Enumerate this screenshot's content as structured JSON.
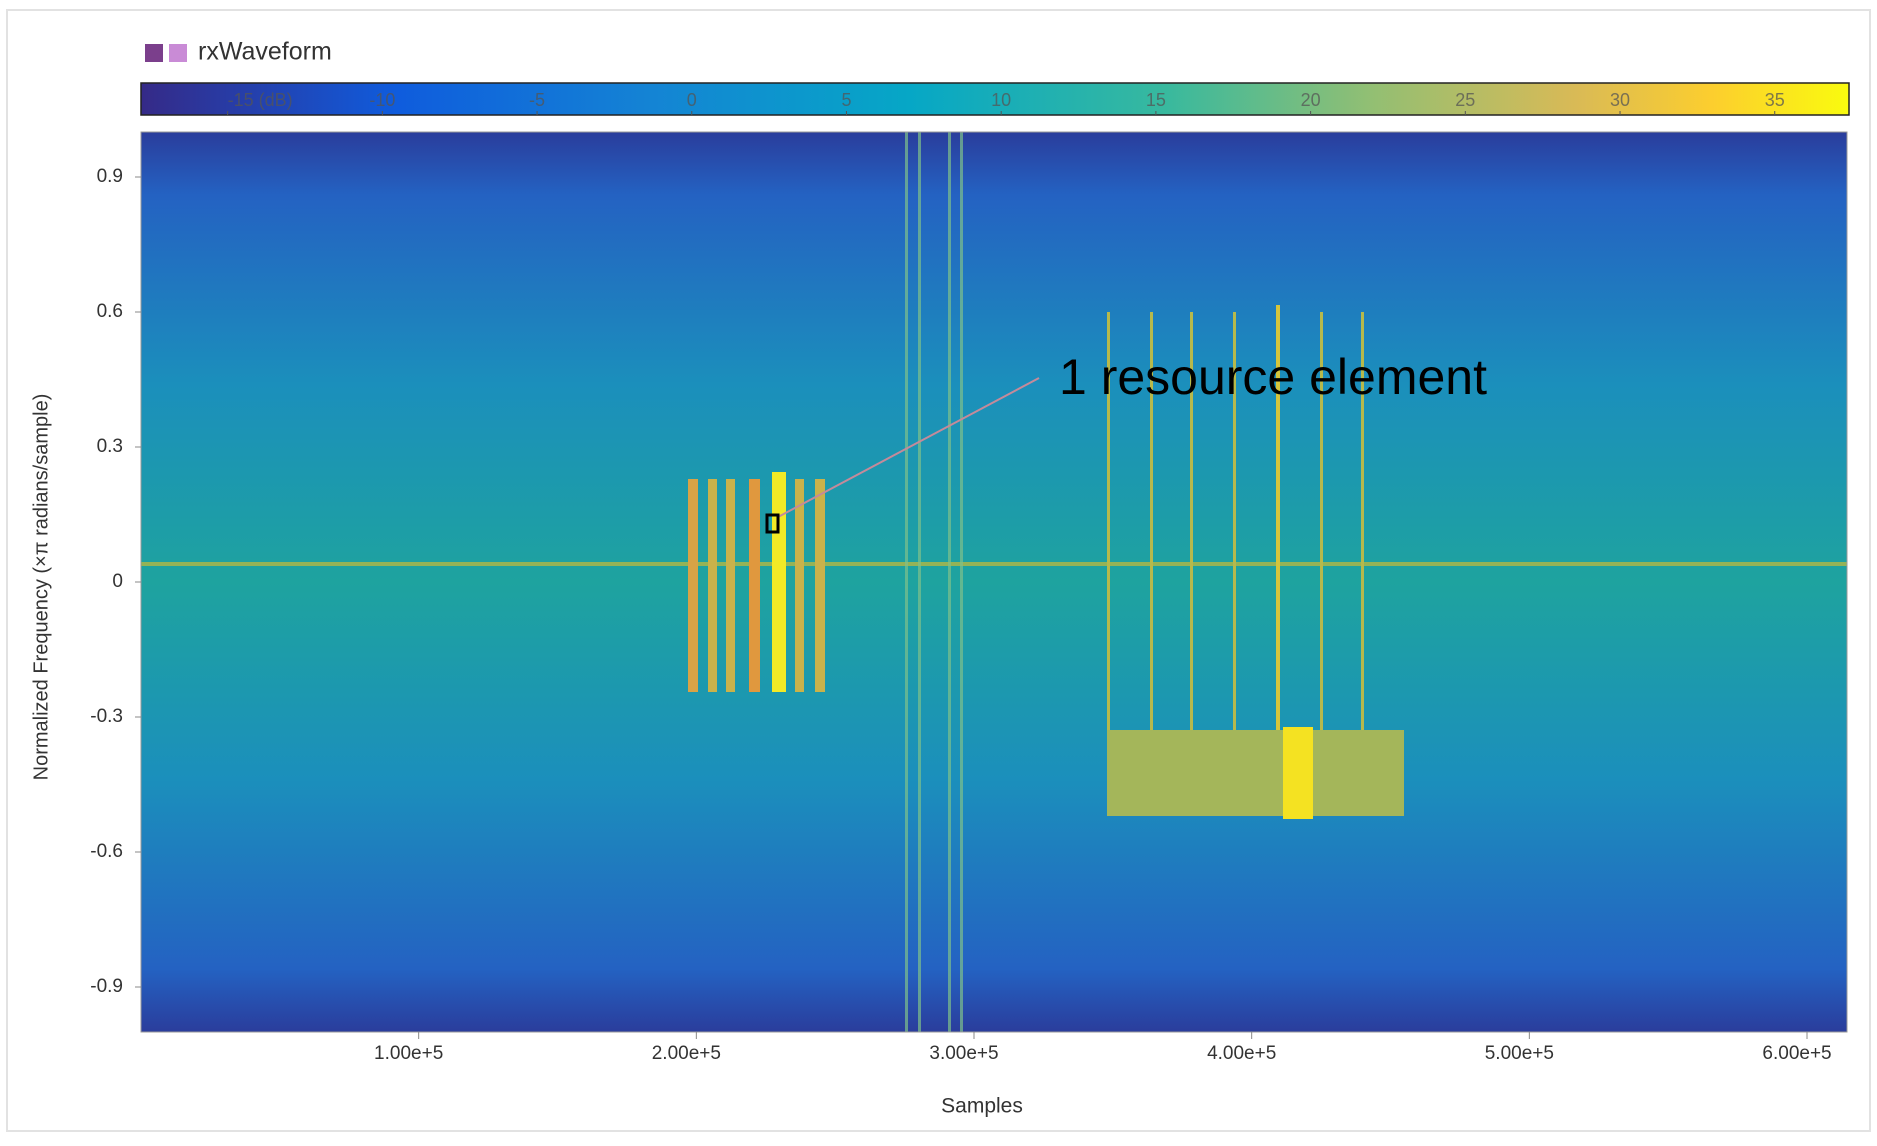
{
  "chart_data": {
    "type": "spectrogram",
    "legend": "rxWaveform",
    "annotation": "1 resource element",
    "xlabel": "Samples",
    "ylabel": "Normalized Frequency (×π radians/sample)",
    "xlim": [
      0,
      614400
    ],
    "xticks": [
      {
        "value": 100000,
        "label": "1.00e+5"
      },
      {
        "value": 200000,
        "label": "2.00e+5"
      },
      {
        "value": 300000,
        "label": "3.00e+5"
      },
      {
        "value": 400000,
        "label": "4.00e+5"
      },
      {
        "value": 500000,
        "label": "5.00e+5"
      },
      {
        "value": 600000,
        "label": "6.00e+5"
      }
    ],
    "ylim": [
      -1,
      1
    ],
    "yticks": [
      0.9,
      0.6,
      0.3,
      0,
      -0.3,
      -0.6,
      -0.9
    ],
    "clim": [
      -17.8,
      37.4
    ],
    "cticks": [
      {
        "value": -15,
        "label": "-15 (dB)"
      },
      -10,
      -5,
      0,
      5,
      10,
      15,
      20,
      25,
      30,
      35
    ]
  }
}
